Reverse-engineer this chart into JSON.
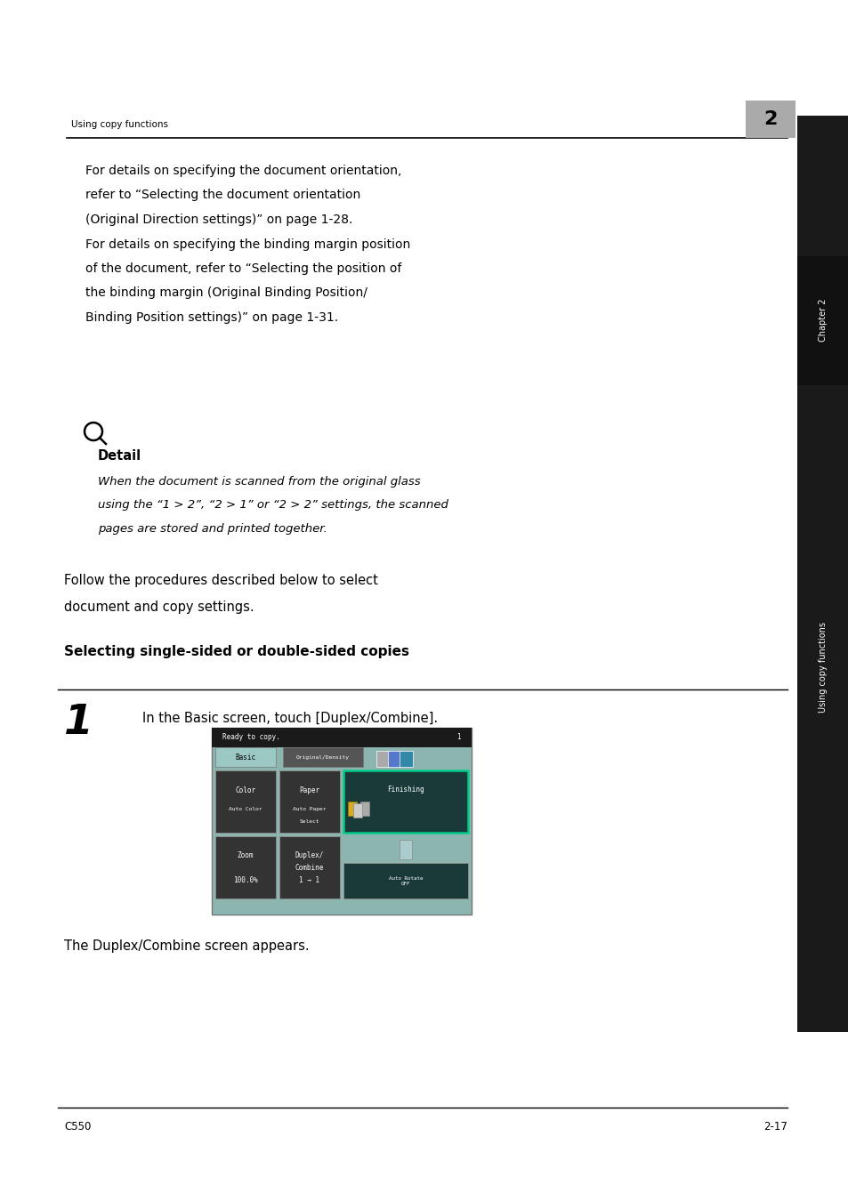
{
  "bg_color": "#ffffff",
  "header_text": "Using copy functions",
  "header_num": "2",
  "para1_lines": [
    "For details on specifying the document orientation,",
    "refer to “Selecting the document orientation",
    "(Original Direction settings)” on page 1-28.",
    "For details on specifying the binding margin position",
    "of the document, refer to “Selecting the position of",
    "the binding margin (Original Binding Position/",
    "Binding Position settings)” on page 1-31."
  ],
  "detail_bold": "Detail",
  "detail_italic_lines": [
    "When the document is scanned from the original glass",
    "using the “1 > 2”, “2 > 1” or “2 > 2” settings, the scanned",
    "pages are stored and printed together."
  ],
  "follow_lines": [
    "Follow the procedures described below to select",
    "document and copy settings."
  ],
  "section_title": "Selecting single-sided or double-sided copies",
  "step_num": "1",
  "step_text": "In the Basic screen, touch [Duplex/Combine].",
  "screen_caption": "The Duplex/Combine screen appears.",
  "footer_left": "C550",
  "footer_right": "2-17",
  "sidebar_text": "Using copy functions",
  "chapter_text": "Chapter 2"
}
